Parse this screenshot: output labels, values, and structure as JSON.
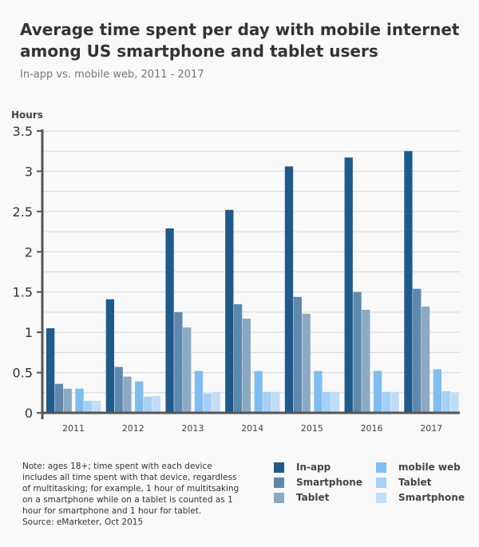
{
  "chart_data": {
    "type": "bar",
    "title": "Average time spent per day with mobile internet among US smartphone and tablet users",
    "subtitle": "In-app vs. mobile web, 2011 - 2017",
    "ylabel": "Hours",
    "ylim": [
      0,
      3.5
    ],
    "yticks": [
      "0",
      "0.5",
      "1",
      "1.5",
      "2",
      "2.5",
      "3",
      "3.5"
    ],
    "grid": true,
    "legend_position": "bottom-right",
    "categories": [
      "2011",
      "2012",
      "2013",
      "2014",
      "2015",
      "2016",
      "2017"
    ],
    "series": [
      {
        "name": "In-app",
        "color": "#1f5a8b",
        "values": [
          1.05,
          1.41,
          2.29,
          2.52,
          3.06,
          3.17,
          3.25
        ]
      },
      {
        "name": "Smartphone",
        "color": "#5e89ae",
        "values": [
          0.36,
          0.57,
          1.25,
          1.35,
          1.44,
          1.5,
          1.54
        ]
      },
      {
        "name": "Tablet",
        "color": "#8ca9c3",
        "values": [
          0.3,
          0.45,
          1.06,
          1.17,
          1.23,
          1.28,
          1.32
        ]
      },
      {
        "name": "mobile web",
        "color": "#7fbdf0",
        "values": [
          0.3,
          0.39,
          0.52,
          0.52,
          0.52,
          0.52,
          0.54
        ]
      },
      {
        "name": "Tablet",
        "color": "#a6d0f5",
        "values": [
          0.15,
          0.2,
          0.24,
          0.26,
          0.26,
          0.26,
          0.27
        ]
      },
      {
        "name": "Smartphone",
        "color": "#c0dcf6",
        "values": [
          0.15,
          0.21,
          0.26,
          0.26,
          0.26,
          0.26,
          0.25
        ]
      }
    ]
  },
  "note": "Note: ages 18+; time spent with each device includes all time spent with that device, regardless of multitasking; for example, 1 hour of multitsaking on a smartphone while on a tablet is counted as 1 hour for smartphone and 1 hour for tablet.",
  "source": "Source: eMarketer, Oct 2015"
}
